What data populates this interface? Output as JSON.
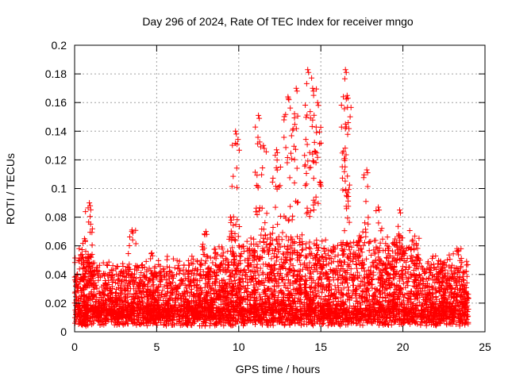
{
  "chart_data": {
    "type": "scatter",
    "title": "Day 296 of 2024, Rate Of TEC Index for receiver mngo",
    "xlabel": "GPS time / hours",
    "ylabel": "ROTI / TECUs",
    "xlim": [
      0,
      25
    ],
    "ylim": [
      0,
      0.2
    ],
    "x_ticks": [
      0,
      5,
      10,
      15,
      20,
      25
    ],
    "y_ticks": [
      0,
      0.02,
      0.04,
      0.06,
      0.08,
      0.1,
      0.12,
      0.14,
      0.16,
      0.18,
      0.2
    ],
    "x_tick_labels": [
      "0",
      "5",
      "10",
      "15",
      "20",
      "25"
    ],
    "y_tick_labels": [
      "0",
      "0.02",
      "0.04",
      "0.06",
      "0.08",
      "0.1",
      "0.12",
      "0.14",
      "0.16",
      "0.18",
      "0.2"
    ],
    "grid": true,
    "marker": "+",
    "color": "#ff0000",
    "series": [
      {
        "name": "ROTI",
        "x_range": [
          0,
          24
        ],
        "base_level": 0.015,
        "peaks": [
          {
            "x": 0.9,
            "y": 0.09
          },
          {
            "x": 0.6,
            "y": 0.065
          },
          {
            "x": 3.5,
            "y": 0.071
          },
          {
            "x": 4.7,
            "y": 0.055
          },
          {
            "x": 8.0,
            "y": 0.07
          },
          {
            "x": 9.5,
            "y": 0.08
          },
          {
            "x": 9.8,
            "y": 0.14
          },
          {
            "x": 11.2,
            "y": 0.151
          },
          {
            "x": 11.5,
            "y": 0.13
          },
          {
            "x": 12.3,
            "y": 0.127
          },
          {
            "x": 13.0,
            "y": 0.164
          },
          {
            "x": 13.5,
            "y": 0.17
          },
          {
            "x": 14.2,
            "y": 0.183
          },
          {
            "x": 14.5,
            "y": 0.17
          },
          {
            "x": 14.8,
            "y": 0.16
          },
          {
            "x": 16.5,
            "y": 0.183
          },
          {
            "x": 16.6,
            "y": 0.165
          },
          {
            "x": 16.5,
            "y": 0.145
          },
          {
            "x": 17.8,
            "y": 0.113
          },
          {
            "x": 18.5,
            "y": 0.087
          },
          {
            "x": 19.8,
            "y": 0.085
          },
          {
            "x": 23.3,
            "y": 0.058
          }
        ]
      }
    ]
  }
}
